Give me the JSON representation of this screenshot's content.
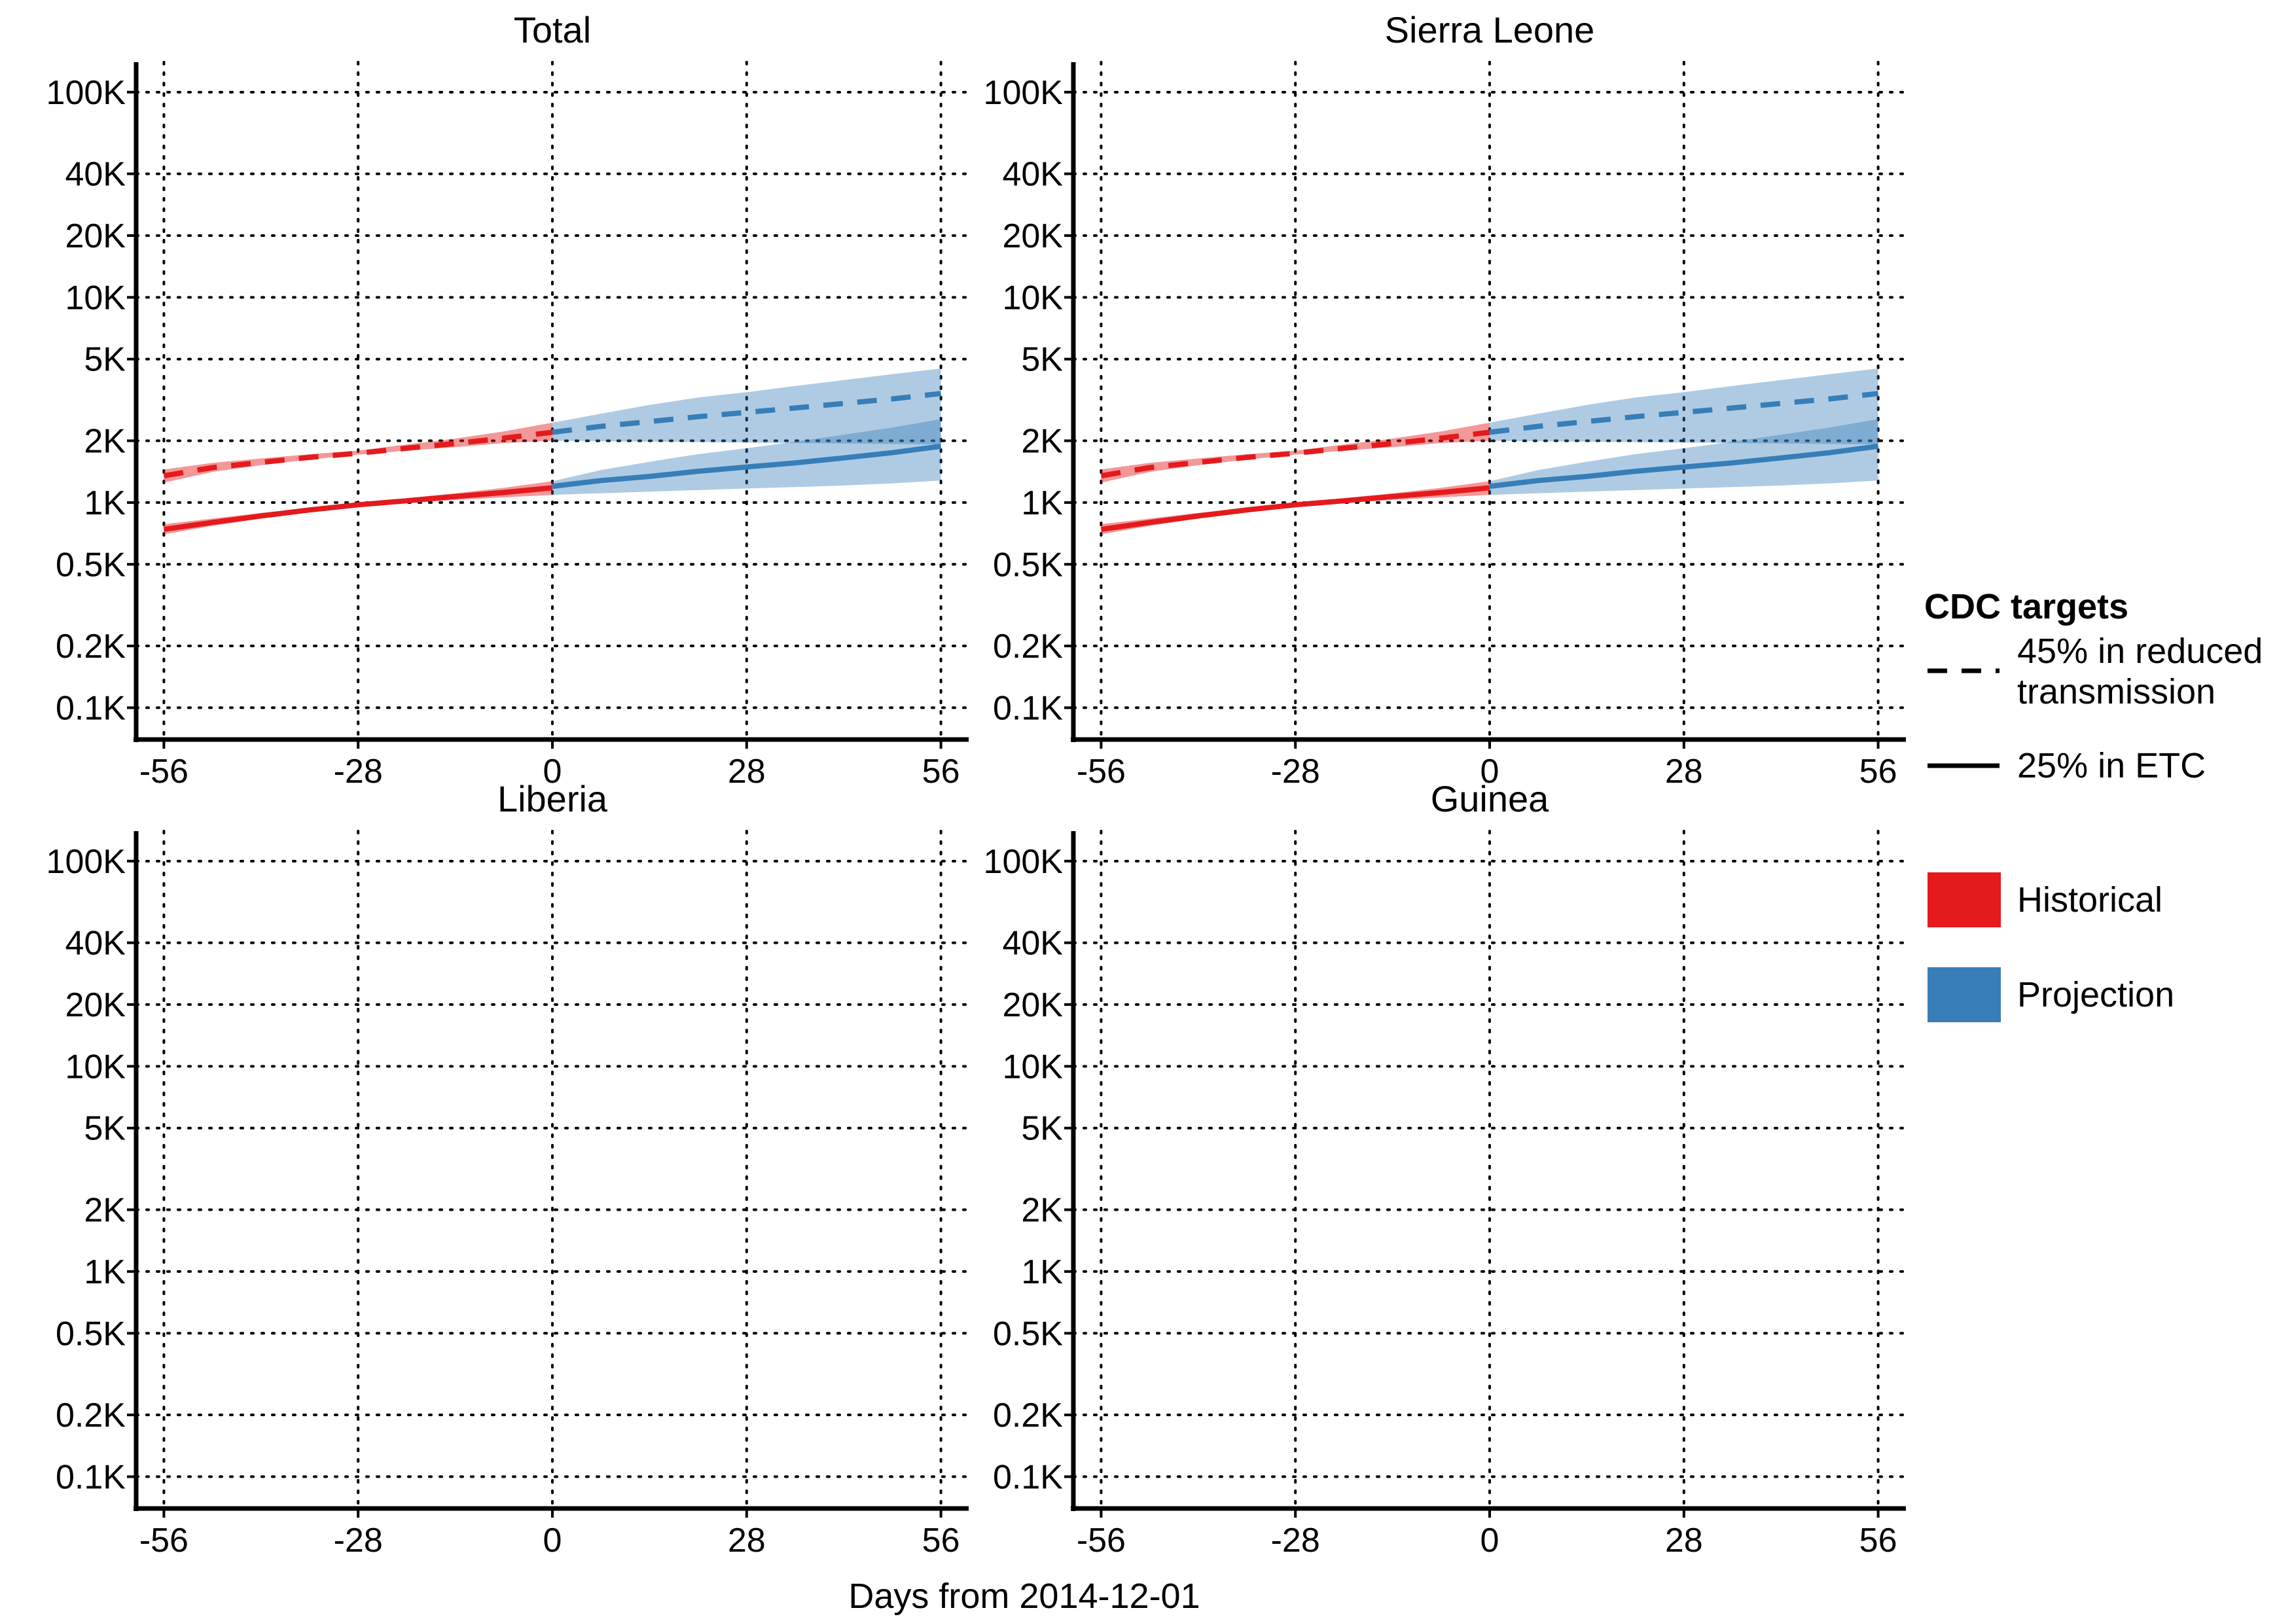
{
  "axis_title": "Days from 2014-12-01",
  "legend": {
    "title": "CDC targets",
    "linetypes": [
      {
        "label_line1": "45% in reduced",
        "label_line2": "transmission",
        "dash": "dashed"
      },
      {
        "label_line1": "25% in ETC",
        "label_line2": "",
        "dash": "solid"
      }
    ],
    "fills": [
      {
        "label": "Historical",
        "color": "#e41a1c"
      },
      {
        "label": "Projection",
        "color": "#377eb8"
      }
    ]
  },
  "chart_data": [
    {
      "type": "line",
      "title": "Total",
      "xlabel": "Days from 2014-12-01",
      "ylabel": "",
      "xlim": [
        -60,
        60
      ],
      "x_ticks": [
        -56,
        -28,
        0,
        28,
        56
      ],
      "y_scale": "log",
      "ylim": [
        70,
        140000
      ],
      "y_ticks": [
        100,
        200,
        500,
        1000,
        2000,
        5000,
        10000,
        20000,
        40000,
        100000
      ],
      "y_tick_labels": [
        "0.1K",
        "0.2K",
        "0.5K",
        "1K",
        "2K",
        "5K",
        "10K",
        "20K",
        "40K",
        "100K"
      ],
      "grid": true,
      "series": [
        {
          "period": "Historical",
          "target": "45% in reduced transmission",
          "color": "#e41a1c",
          "x": [
            -56,
            -49,
            -42,
            -35,
            -28,
            -21,
            -14,
            -7,
            0
          ],
          "y": [
            1350,
            1480,
            1570,
            1660,
            1740,
            1840,
            1940,
            2060,
            2200
          ],
          "lower": [
            1250,
            1410,
            1520,
            1620,
            1710,
            1790,
            1860,
            1950,
            2000
          ],
          "upper": [
            1450,
            1560,
            1640,
            1720,
            1790,
            1920,
            2050,
            2220,
            2450
          ]
        },
        {
          "period": "Historical",
          "target": "25% in ETC",
          "color": "#e41a1c",
          "x": [
            -56,
            -49,
            -42,
            -35,
            -28,
            -21,
            -14,
            -7,
            0
          ],
          "y": [
            740,
            800,
            860,
            920,
            975,
            1020,
            1070,
            1120,
            1180
          ],
          "lower": [
            700,
            770,
            835,
            905,
            960,
            995,
            1030,
            1060,
            1090
          ],
          "upper": [
            785,
            835,
            890,
            940,
            990,
            1050,
            1110,
            1180,
            1270
          ]
        },
        {
          "period": "Projection",
          "target": "45% in reduced transmission",
          "color": "#377eb8",
          "x": [
            0,
            7,
            14,
            21,
            28,
            35,
            42,
            49,
            56
          ],
          "y": [
            2200,
            2350,
            2480,
            2620,
            2750,
            2890,
            3040,
            3200,
            3400
          ],
          "lower": [
            2000,
            1990,
            1980,
            1970,
            1960,
            1950,
            1940,
            1930,
            1920
          ],
          "upper": [
            2450,
            2710,
            2990,
            3250,
            3450,
            3700,
            3950,
            4220,
            4500
          ]
        },
        {
          "period": "Projection",
          "target": "25% in ETC",
          "color": "#377eb8",
          "x": [
            0,
            7,
            14,
            21,
            28,
            35,
            42,
            49,
            56
          ],
          "y": [
            1200,
            1280,
            1340,
            1420,
            1490,
            1560,
            1650,
            1750,
            1880
          ],
          "lower": [
            1090,
            1110,
            1130,
            1150,
            1170,
            1190,
            1210,
            1240,
            1280
          ],
          "upper": [
            1270,
            1440,
            1580,
            1720,
            1840,
            1980,
            2140,
            2320,
            2550
          ]
        }
      ]
    },
    {
      "type": "line",
      "title": "Sierra Leone",
      "xlabel": "Days from 2014-12-01",
      "ylabel": "",
      "xlim": [
        -60,
        60
      ],
      "x_ticks": [
        -56,
        -28,
        0,
        28,
        56
      ],
      "y_scale": "log",
      "ylim": [
        70,
        140000
      ],
      "y_ticks": [
        100,
        200,
        500,
        1000,
        2000,
        5000,
        10000,
        20000,
        40000,
        100000
      ],
      "y_tick_labels": [
        "0.1K",
        "0.2K",
        "0.5K",
        "1K",
        "2K",
        "5K",
        "10K",
        "20K",
        "40K",
        "100K"
      ],
      "grid": true,
      "series": [
        {
          "period": "Historical",
          "target": "45% in reduced transmission",
          "color": "#e41a1c",
          "x": [
            -56,
            -49,
            -42,
            -35,
            -28,
            -21,
            -14,
            -7,
            0
          ],
          "y": [
            1350,
            1480,
            1570,
            1660,
            1740,
            1840,
            1940,
            2060,
            2200
          ],
          "lower": [
            1250,
            1410,
            1520,
            1620,
            1710,
            1790,
            1860,
            1950,
            2000
          ],
          "upper": [
            1450,
            1560,
            1640,
            1720,
            1790,
            1920,
            2050,
            2220,
            2450
          ]
        },
        {
          "period": "Historical",
          "target": "25% in ETC",
          "color": "#e41a1c",
          "x": [
            -56,
            -49,
            -42,
            -35,
            -28,
            -21,
            -14,
            -7,
            0
          ],
          "y": [
            740,
            800,
            860,
            920,
            975,
            1020,
            1070,
            1120,
            1180
          ],
          "lower": [
            700,
            770,
            835,
            905,
            960,
            995,
            1030,
            1060,
            1090
          ],
          "upper": [
            785,
            835,
            890,
            940,
            990,
            1050,
            1110,
            1180,
            1270
          ]
        },
        {
          "period": "Projection",
          "target": "45% in reduced transmission",
          "color": "#377eb8",
          "x": [
            0,
            7,
            14,
            21,
            28,
            35,
            42,
            49,
            56
          ],
          "y": [
            2200,
            2350,
            2480,
            2620,
            2750,
            2890,
            3040,
            3200,
            3400
          ],
          "lower": [
            2000,
            1990,
            1980,
            1970,
            1960,
            1950,
            1940,
            1930,
            1920
          ],
          "upper": [
            2450,
            2710,
            2990,
            3250,
            3450,
            3700,
            3950,
            4220,
            4500
          ]
        },
        {
          "period": "Projection",
          "target": "25% in ETC",
          "color": "#377eb8",
          "x": [
            0,
            7,
            14,
            21,
            28,
            35,
            42,
            49,
            56
          ],
          "y": [
            1200,
            1280,
            1340,
            1420,
            1490,
            1560,
            1650,
            1750,
            1880
          ],
          "lower": [
            1090,
            1110,
            1130,
            1150,
            1170,
            1190,
            1210,
            1240,
            1280
          ],
          "upper": [
            1270,
            1440,
            1580,
            1720,
            1840,
            1980,
            2140,
            2320,
            2550
          ]
        }
      ]
    },
    {
      "type": "line",
      "title": "Liberia",
      "xlabel": "Days from 2014-12-01",
      "ylabel": "",
      "xlim": [
        -60,
        60
      ],
      "x_ticks": [
        -56,
        -28,
        0,
        28,
        56
      ],
      "y_scale": "log",
      "ylim": [
        70,
        140000
      ],
      "y_ticks": [
        100,
        200,
        500,
        1000,
        2000,
        5000,
        10000,
        20000,
        40000,
        100000
      ],
      "y_tick_labels": [
        "0.1K",
        "0.2K",
        "0.5K",
        "1K",
        "2K",
        "5K",
        "10K",
        "20K",
        "40K",
        "100K"
      ],
      "grid": true,
      "series": []
    },
    {
      "type": "line",
      "title": "Guinea",
      "xlabel": "Days from 2014-12-01",
      "ylabel": "",
      "xlim": [
        -60,
        60
      ],
      "x_ticks": [
        -56,
        -28,
        0,
        28,
        56
      ],
      "y_scale": "log",
      "ylim": [
        70,
        140000
      ],
      "y_ticks": [
        100,
        200,
        500,
        1000,
        2000,
        5000,
        10000,
        20000,
        40000,
        100000
      ],
      "y_tick_labels": [
        "0.1K",
        "0.2K",
        "0.5K",
        "1K",
        "2K",
        "5K",
        "10K",
        "20K",
        "40K",
        "100K"
      ],
      "grid": true,
      "series": []
    }
  ]
}
